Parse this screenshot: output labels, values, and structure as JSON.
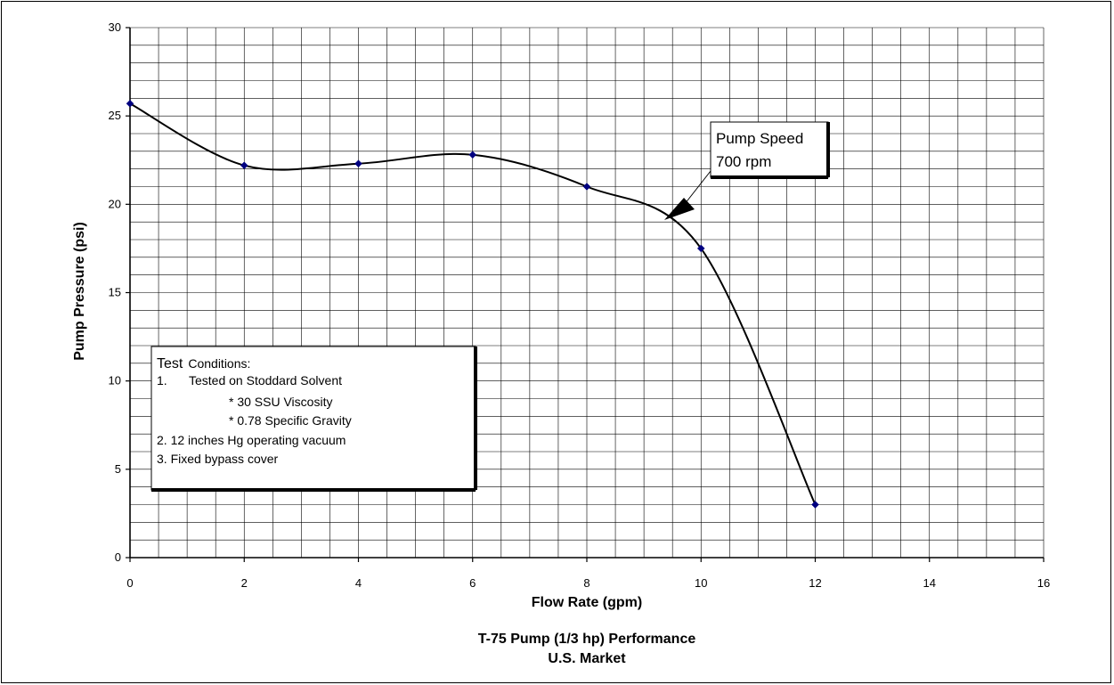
{
  "chart_data": {
    "type": "line",
    "x": [
      0,
      2,
      4,
      6,
      8,
      10,
      12
    ],
    "series": [
      {
        "values": [
          25.7,
          22.2,
          22.3,
          22.8,
          21.0,
          17.5,
          3.0
        ]
      }
    ],
    "xlabel": "Flow Rate (gpm)",
    "ylabel": "Pump Pressure (psi)",
    "xlim": [
      0,
      16
    ],
    "ylim": [
      0,
      30
    ],
    "x_ticks": [
      0,
      2,
      4,
      6,
      8,
      10,
      12,
      14,
      16
    ],
    "y_ticks": [
      0,
      5,
      10,
      15,
      20,
      25,
      30
    ],
    "grid": true,
    "line_color": "#000000",
    "marker_color": "#000080",
    "callout": {
      "line1": "Pump Speed",
      "line2": "700 rpm"
    },
    "test_conditions": {
      "heading_word": "Test",
      "heading_rest": "Conditions:",
      "item1_num": "1.",
      "item1_text": "Tested on Stoddard Solvent",
      "item1_sub1": "*  30 SSU Viscosity",
      "item1_sub2": "*  0.78 Specific Gravity",
      "item2": "2.  12 inches  Hg operating vacuum",
      "item3": "3.  Fixed bypass cover"
    },
    "caption_line1": "T-75 Pump (1/3 hp) Performance",
    "caption_line2": "U.S. Market"
  }
}
